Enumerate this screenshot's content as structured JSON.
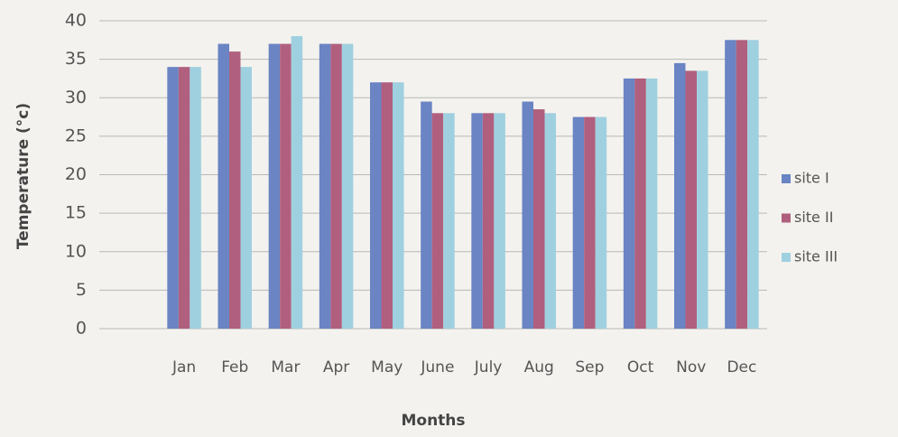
{
  "chart_data": {
    "type": "bar",
    "xlabel": "Months",
    "ylabel": "Temperature (°c)",
    "categories": [
      "Jan",
      "Feb",
      "Mar",
      "Apr",
      "May",
      "June",
      "July",
      "Aug",
      "Sep",
      "Oct",
      "Nov",
      "Dec"
    ],
    "series": [
      {
        "name": "site I",
        "color": "#6a84c4",
        "values": [
          34,
          37,
          37,
          37,
          32,
          29.5,
          28,
          29.5,
          27.5,
          32.5,
          34.5,
          37.5
        ]
      },
      {
        "name": "site II",
        "color": "#b0607e",
        "values": [
          34,
          36,
          37,
          37,
          32,
          28,
          28,
          28.5,
          27.5,
          32.5,
          33.5,
          37.5
        ]
      },
      {
        "name": "site III",
        "color": "#9fd0e0",
        "values": [
          34,
          34,
          38,
          37,
          32,
          28,
          28,
          28,
          27.5,
          32.5,
          33.5,
          37.5
        ]
      }
    ],
    "ylim": [
      0,
      40
    ],
    "yticks": [
      0,
      5,
      10,
      15,
      20,
      25,
      30,
      35,
      40
    ],
    "grid": true,
    "legend": "right"
  }
}
